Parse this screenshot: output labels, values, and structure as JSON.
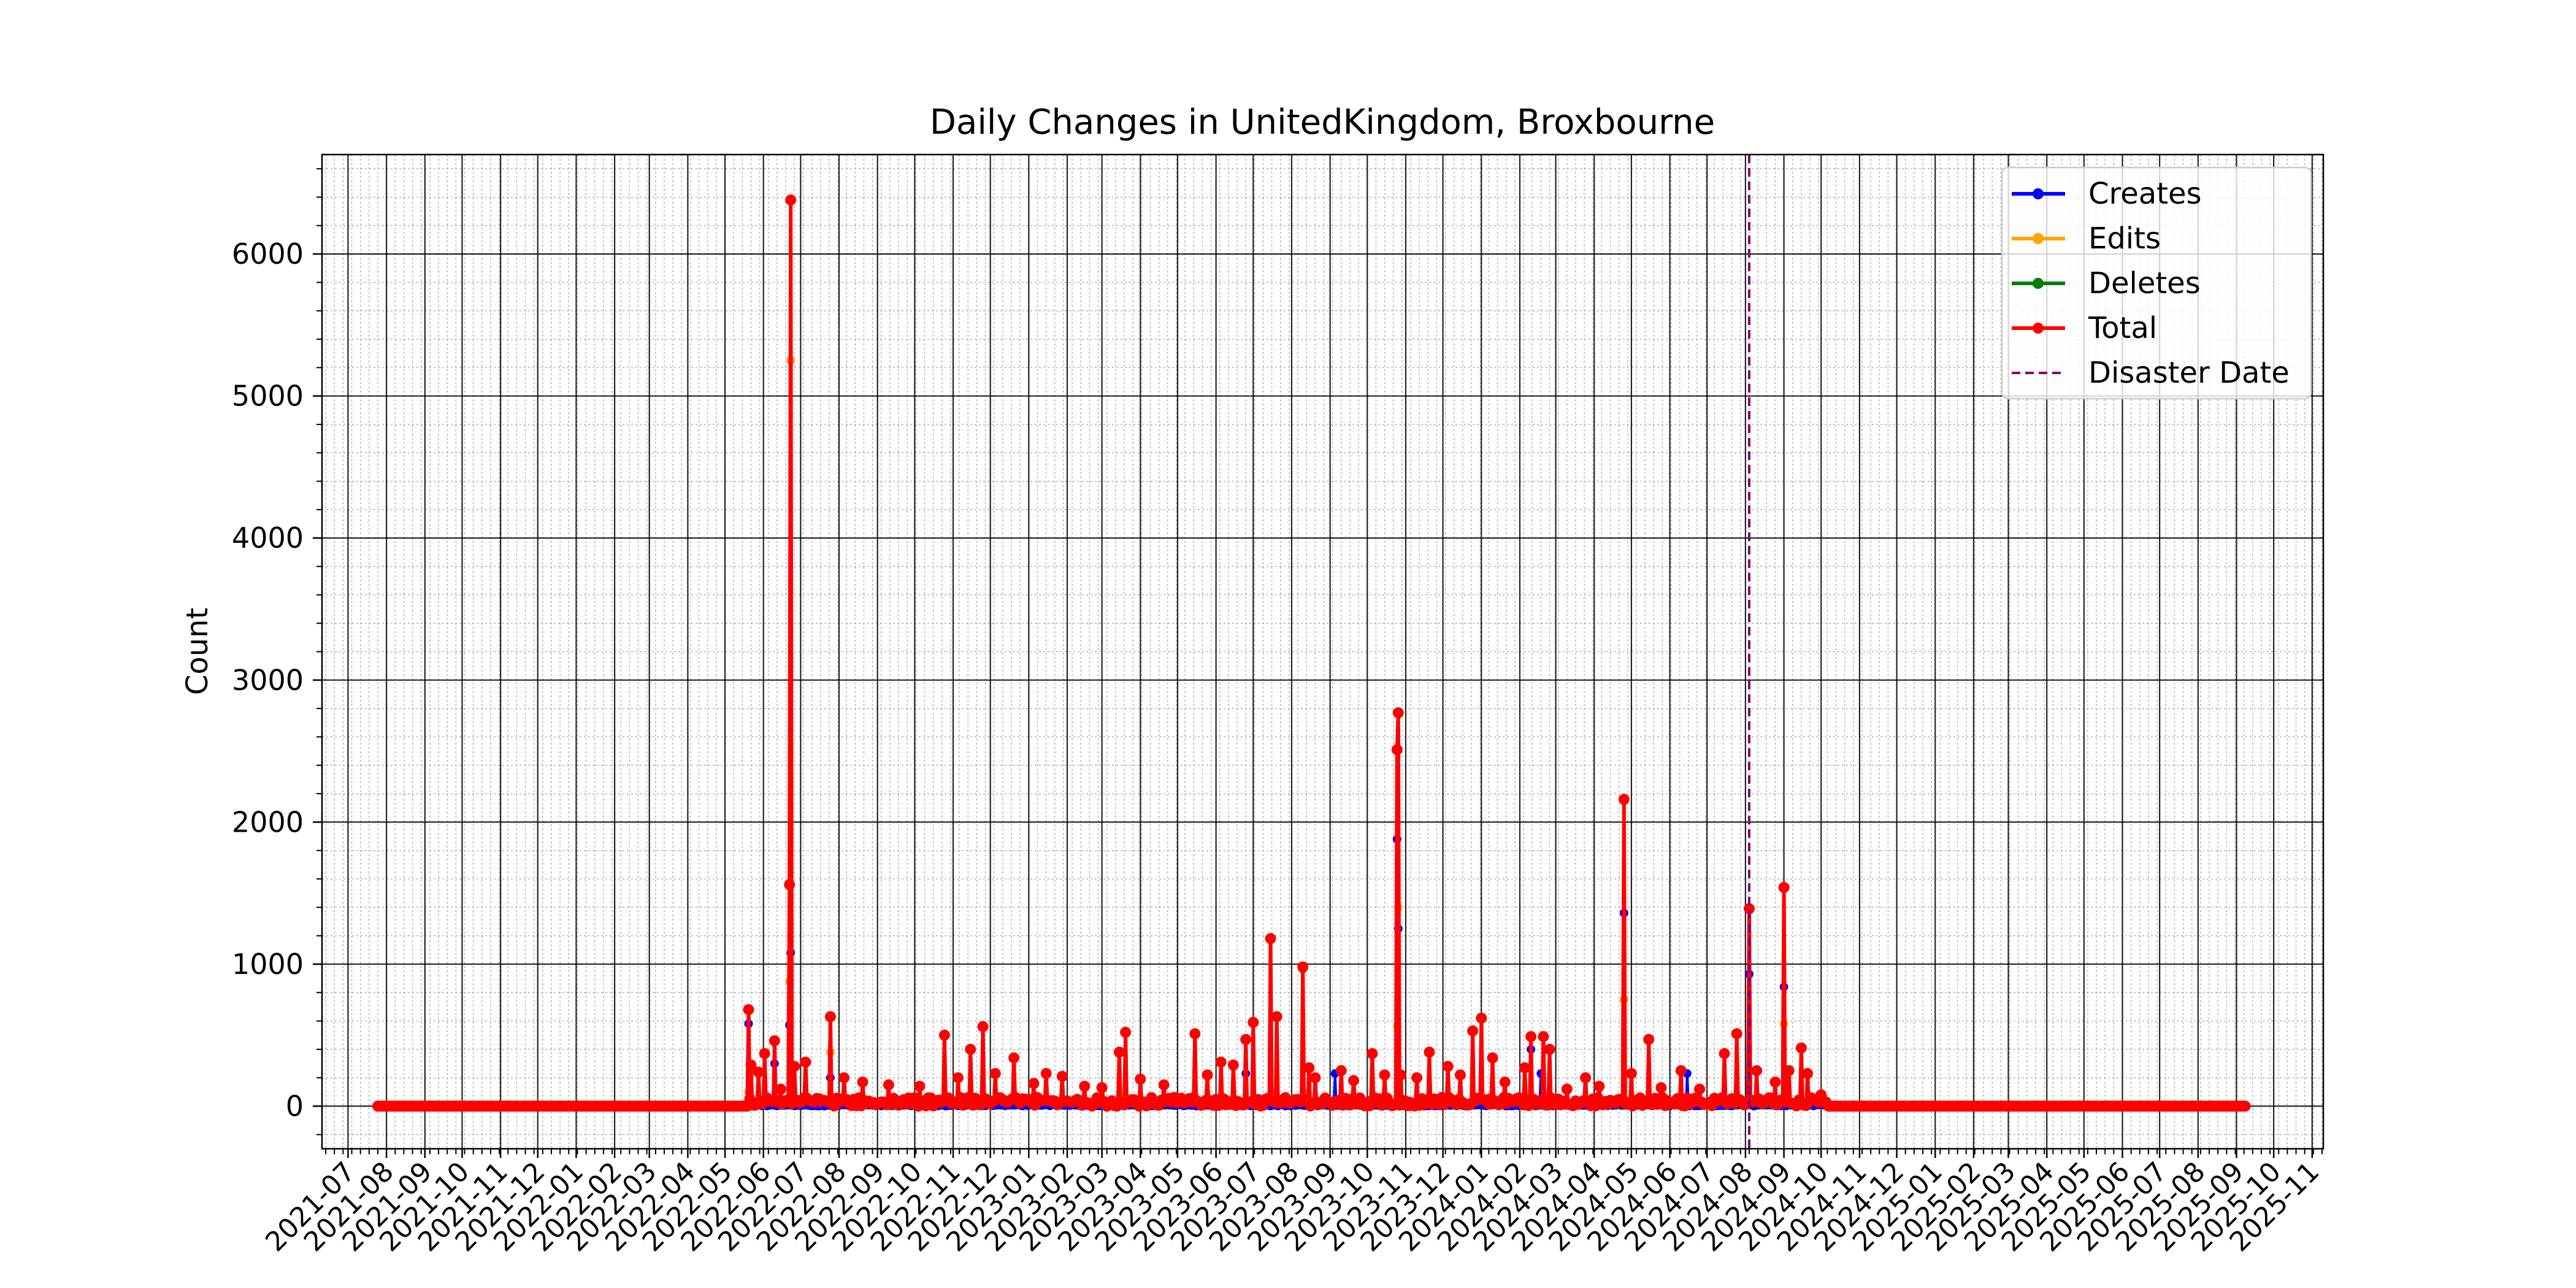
{
  "chart_data": {
    "type": "line",
    "title": "Daily Changes in UnitedKingdom, Broxbourne",
    "xlabel": "",
    "ylabel": "Count",
    "ylim": [
      -300,
      6700
    ],
    "xlim": [
      "2021-06-10",
      "2025-11-10"
    ],
    "yticks": [
      0,
      1000,
      2000,
      3000,
      4000,
      5000,
      6000
    ],
    "xtick_labels": [
      "2021-07",
      "2021-08",
      "2021-09",
      "2021-10",
      "2021-11",
      "2021-12",
      "2022-01",
      "2022-02",
      "2022-03",
      "2022-04",
      "2022-05",
      "2022-06",
      "2022-07",
      "2022-08",
      "2022-09",
      "2022-10",
      "2022-11",
      "2022-12",
      "2023-01",
      "2023-02",
      "2023-03",
      "2023-04",
      "2023-05",
      "2023-06",
      "2023-07",
      "2023-08",
      "2023-09",
      "2023-10",
      "2023-11",
      "2023-12",
      "2024-01",
      "2024-02",
      "2024-03",
      "2024-04",
      "2024-05",
      "2024-06",
      "2024-07",
      "2024-08",
      "2024-09",
      "2024-10",
      "2024-11",
      "2024-12",
      "2025-01",
      "2025-02",
      "2025-03",
      "2025-04",
      "2025-05",
      "2025-06",
      "2025-07",
      "2025-08",
      "2025-09",
      "2025-10",
      "2025-11"
    ],
    "grid": true,
    "minor_grid": true,
    "legend_position": "top-right",
    "colors": {
      "Creates": "#0000ff",
      "Edits": "#ffa500",
      "Deletes": "#008000",
      "Total": "#ff0000",
      "Disaster Date": "#800080"
    },
    "x_range_daily": [
      "2021-07-25",
      "2025-09-08"
    ],
    "active_range": [
      "2022-05-20",
      "2024-10-05"
    ],
    "disaster_date": "2024-08-04",
    "series": [
      {
        "name": "Creates",
        "points": [
          [
            "2022-05-20",
            580
          ],
          [
            "2022-06-10",
            300
          ],
          [
            "2022-06-22",
            570
          ],
          [
            "2022-06-23",
            1080
          ],
          [
            "2022-07-25",
            200
          ],
          [
            "2023-06-25",
            230
          ],
          [
            "2023-09-05",
            230
          ],
          [
            "2023-10-25",
            1880
          ],
          [
            "2023-10-26",
            1250
          ],
          [
            "2024-02-10",
            400
          ],
          [
            "2024-02-18",
            230
          ],
          [
            "2024-04-25",
            1360
          ],
          [
            "2024-06-15",
            230
          ],
          [
            "2024-08-04",
            930
          ],
          [
            "2024-09-01",
            840
          ]
        ]
      },
      {
        "name": "Edits",
        "points": [
          [
            "2022-05-20",
            100
          ],
          [
            "2022-06-22",
            880
          ],
          [
            "2022-06-23",
            5250
          ],
          [
            "2022-07-25",
            380
          ],
          [
            "2023-08-10",
            960
          ],
          [
            "2023-10-25",
            560
          ],
          [
            "2023-10-26",
            1400
          ],
          [
            "2024-04-25",
            750
          ],
          [
            "2024-09-01",
            580
          ],
          [
            "2024-08-10",
            250
          ]
        ]
      },
      {
        "name": "Deletes",
        "points": [
          [
            "2022-05-20",
            5
          ],
          [
            "2022-06-23",
            20
          ],
          [
            "2023-10-25",
            10
          ],
          [
            "2024-04-25",
            8
          ],
          [
            "2024-08-04",
            10
          ]
        ]
      },
      {
        "name": "Total",
        "points": [
          [
            "2022-05-20",
            680
          ],
          [
            "2022-05-22",
            290
          ],
          [
            "2022-05-28",
            240
          ],
          [
            "2022-06-02",
            370
          ],
          [
            "2022-06-10",
            460
          ],
          [
            "2022-06-15",
            120
          ],
          [
            "2022-06-22",
            1560
          ],
          [
            "2022-06-23",
            6380
          ],
          [
            "2022-06-26",
            280
          ],
          [
            "2022-07-05",
            310
          ],
          [
            "2022-07-25",
            630
          ],
          [
            "2022-08-05",
            200
          ],
          [
            "2022-08-20",
            170
          ],
          [
            "2022-09-10",
            150
          ],
          [
            "2022-10-05",
            140
          ],
          [
            "2022-10-25",
            500
          ],
          [
            "2022-11-05",
            200
          ],
          [
            "2022-11-15",
            400
          ],
          [
            "2022-11-25",
            560
          ],
          [
            "2022-12-05",
            230
          ],
          [
            "2022-12-20",
            340
          ],
          [
            "2023-01-05",
            160
          ],
          [
            "2023-01-15",
            230
          ],
          [
            "2023-01-28",
            210
          ],
          [
            "2023-02-15",
            140
          ],
          [
            "2023-03-01",
            130
          ],
          [
            "2023-03-15",
            380
          ],
          [
            "2023-03-20",
            520
          ],
          [
            "2023-04-01",
            190
          ],
          [
            "2023-04-20",
            150
          ],
          [
            "2023-05-15",
            510
          ],
          [
            "2023-05-25",
            220
          ],
          [
            "2023-06-05",
            310
          ],
          [
            "2023-06-15",
            290
          ],
          [
            "2023-06-25",
            470
          ],
          [
            "2023-07-01",
            590
          ],
          [
            "2023-07-15",
            1180
          ],
          [
            "2023-07-20",
            630
          ],
          [
            "2023-08-10",
            980
          ],
          [
            "2023-08-15",
            270
          ],
          [
            "2023-08-20",
            200
          ],
          [
            "2023-09-10",
            250
          ],
          [
            "2023-09-20",
            180
          ],
          [
            "2023-10-05",
            370
          ],
          [
            "2023-10-15",
            220
          ],
          [
            "2023-10-25",
            2510
          ],
          [
            "2023-10-26",
            2770
          ],
          [
            "2023-10-28",
            220
          ],
          [
            "2023-11-10",
            200
          ],
          [
            "2023-11-20",
            380
          ],
          [
            "2023-12-05",
            280
          ],
          [
            "2023-12-15",
            220
          ],
          [
            "2023-12-25",
            530
          ],
          [
            "2024-01-01",
            620
          ],
          [
            "2024-01-10",
            340
          ],
          [
            "2024-01-20",
            170
          ],
          [
            "2024-02-05",
            270
          ],
          [
            "2024-02-10",
            490
          ],
          [
            "2024-02-20",
            490
          ],
          [
            "2024-02-25",
            400
          ],
          [
            "2024-03-10",
            120
          ],
          [
            "2024-03-25",
            200
          ],
          [
            "2024-04-05",
            140
          ],
          [
            "2024-04-25",
            2160
          ],
          [
            "2024-05-01",
            230
          ],
          [
            "2024-05-15",
            470
          ],
          [
            "2024-05-25",
            130
          ],
          [
            "2024-06-10",
            250
          ],
          [
            "2024-06-25",
            120
          ],
          [
            "2024-07-15",
            370
          ],
          [
            "2024-07-25",
            510
          ],
          [
            "2024-08-04",
            1390
          ],
          [
            "2024-08-10",
            250
          ],
          [
            "2024-08-25",
            170
          ],
          [
            "2024-09-01",
            1540
          ],
          [
            "2024-09-05",
            250
          ],
          [
            "2024-09-15",
            410
          ],
          [
            "2024-09-20",
            230
          ],
          [
            "2024-10-01",
            80
          ]
        ]
      }
    ]
  },
  "legend": {
    "items": [
      {
        "label": "Creates",
        "color": "#0000ff",
        "style": "line-marker"
      },
      {
        "label": "Edits",
        "color": "#ffa500",
        "style": "line-marker"
      },
      {
        "label": "Deletes",
        "color": "#008000",
        "style": "line-marker"
      },
      {
        "label": "Total",
        "color": "#ff0000",
        "style": "line-marker"
      },
      {
        "label": "Disaster Date",
        "color": "#800080",
        "style": "dashed"
      }
    ]
  }
}
